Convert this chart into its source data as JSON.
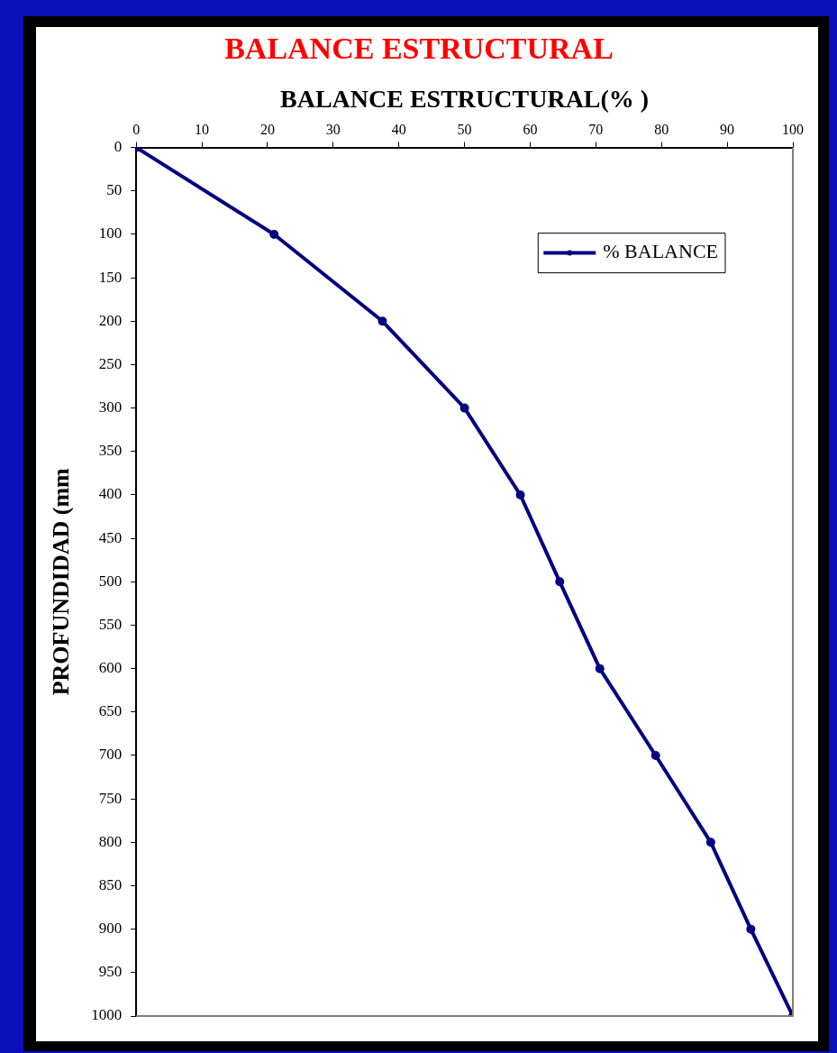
{
  "chart_data": {
    "type": "line",
    "title": "BALANCE ESTRUCTURAL",
    "xlabel": "BALANCE ESTRUCTURAL(% )",
    "ylabel": "PROFUNDIDAD (mm",
    "x": [
      0,
      21,
      37.5,
      50,
      58.5,
      64.5,
      70.6,
      79.1,
      87.5,
      93.6,
      100
    ],
    "series": [
      {
        "name": "% BALANCE",
        "color": "#000080",
        "values": [
          0,
          100,
          200,
          300,
          400,
          500,
          600,
          700,
          800,
          900,
          1000
        ]
      }
    ],
    "xlim": [
      0,
      100
    ],
    "xticks": [
      0,
      10,
      20,
      30,
      40,
      50,
      60,
      70,
      80,
      90,
      100
    ],
    "ylim": [
      1000,
      0
    ],
    "yticks": [
      0,
      50,
      100,
      150,
      200,
      250,
      300,
      350,
      400,
      450,
      500,
      550,
      600,
      650,
      700,
      750,
      800,
      850,
      900,
      950,
      1000
    ],
    "grid": false,
    "legend": "top right",
    "marker": "circle",
    "line_style": "solid"
  }
}
